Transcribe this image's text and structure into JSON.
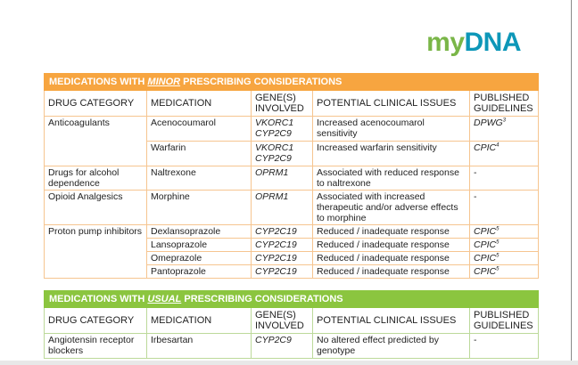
{
  "logo": {
    "my": "my",
    "dna": "DNA"
  },
  "minor": {
    "title_prefix": "MEDICATIONS WITH ",
    "title_em": "MINOR",
    "title_suffix": " PRESCRIBING CONSIDERATIONS",
    "headers": [
      "DRUG CATEGORY",
      "MEDICATION",
      "GENE(S) INVOLVED",
      "POTENTIAL CLINICAL ISSUES",
      "PUBLISHED GUIDELINES"
    ],
    "rows": [
      {
        "category": "Anticoagulants",
        "medication": "Acenocoumarol",
        "genes": "VKORC1 CYP2C9",
        "issue": "Increased acenocoumarol sensitivity",
        "guideline": "DPWG",
        "sup": "3"
      },
      {
        "category": "",
        "medication": "Warfarin",
        "genes": "VKORC1 CYP2C9",
        "issue": "Increased warfarin sensitivity",
        "guideline": "CPIC",
        "sup": "4"
      },
      {
        "category": "Drugs for alcohol dependence",
        "medication": "Naltrexone",
        "genes": "OPRM1",
        "issue": "Associated with reduced response to naltrexone",
        "guideline": "-",
        "sup": ""
      },
      {
        "category": "Opioid Analgesics",
        "medication": "Morphine",
        "genes": "OPRM1",
        "issue": "Associated with increased therapeutic and/or adverse effects to morphine",
        "guideline": "-",
        "sup": ""
      },
      {
        "category": "Proton pump inhibitors",
        "medication": "Dexlansoprazole",
        "genes": "CYP2C19",
        "issue": "Reduced / inadequate response",
        "guideline": "CPIC",
        "sup": "5"
      },
      {
        "category": "",
        "medication": "Lansoprazole",
        "genes": "CYP2C19",
        "issue": "Reduced / inadequate response",
        "guideline": "CPIC",
        "sup": "5"
      },
      {
        "category": "",
        "medication": "Omeprazole",
        "genes": "CYP2C19",
        "issue": "Reduced / inadequate response",
        "guideline": "CPIC",
        "sup": "5"
      },
      {
        "category": "",
        "medication": "Pantoprazole",
        "genes": "CYP2C19",
        "issue": "Reduced / inadequate response",
        "guideline": "CPIC",
        "sup": "5"
      }
    ]
  },
  "usual": {
    "title_prefix": "MEDICATIONS WITH ",
    "title_em": "USUAL",
    "title_suffix": " PRESCRIBING CONSIDERATIONS",
    "headers": [
      "DRUG CATEGORY",
      "MEDICATION",
      "GENE(S) INVOLVED",
      "POTENTIAL CLINICAL ISSUES",
      "PUBLISHED GUIDELINES"
    ],
    "rows": [
      {
        "category": "Angiotensin receptor blockers",
        "medication": "Irbesartan",
        "genes": "CYP2C9",
        "issue": "No altered effect predicted by genotype",
        "guideline": "-",
        "sup": ""
      }
    ]
  },
  "colors": {
    "minor_accent": "#f7a540",
    "usual_accent": "#8bc53f",
    "logo_green": "#7ab648",
    "logo_blue": "#0d97b8"
  }
}
